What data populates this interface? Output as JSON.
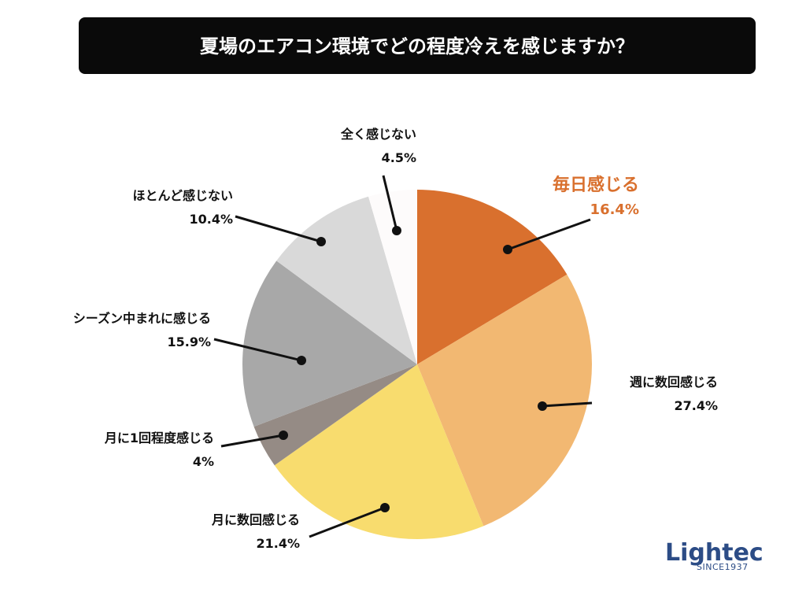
{
  "title": "夏場のエアコン環境でどの程度冷えを感じますか？",
  "chart_data": {
    "type": "pie",
    "slices": [
      {
        "label": "毎日感じる",
        "value": 16.4,
        "display": "16.4%",
        "color": "#d9702e",
        "highlight": true
      },
      {
        "label": "週に数回感じる",
        "value": 27.4,
        "display": "27.4%",
        "color": "#f2b872"
      },
      {
        "label": "月に数回感じる",
        "value": 21.4,
        "display": "21.4%",
        "color": "#f8dc6e"
      },
      {
        "label": "月に1回程度感じる",
        "value": 4.0,
        "display": "4%",
        "color": "#958b85"
      },
      {
        "label": "シーズン中まれに感じる",
        "value": 15.9,
        "display": "15.9%",
        "color": "#a8a8a8"
      },
      {
        "label": "ほとんど感じない",
        "value": 10.4,
        "display": "10.4%",
        "color": "#d9d9d9"
      },
      {
        "label": "全く感じない",
        "value": 4.5,
        "display": "4.5%",
        "color": "#fdfbfb"
      }
    ]
  },
  "logo": {
    "name": "Lightec",
    "tagline": "SINCE1937"
  }
}
